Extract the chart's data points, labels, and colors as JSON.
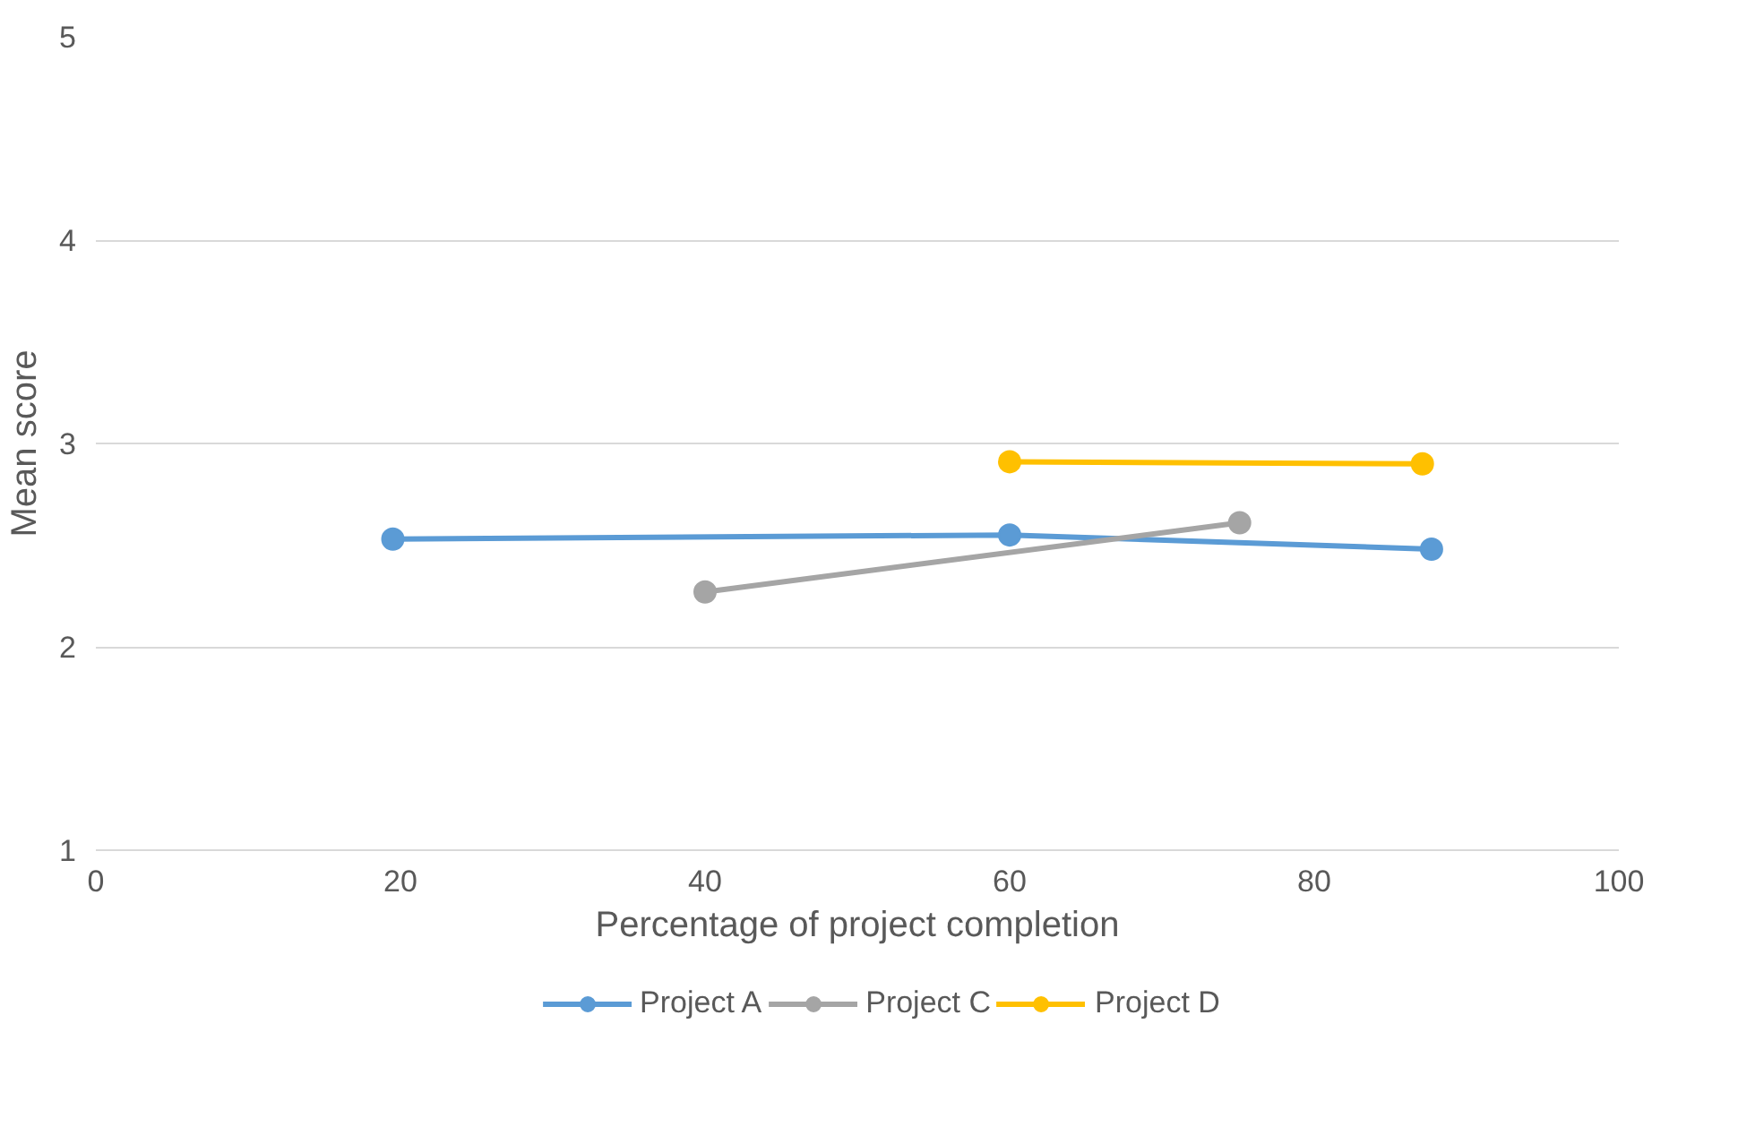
{
  "chart_data": {
    "type": "line",
    "xlabel": "Percentage of project completion",
    "ylabel": "Mean score",
    "xlim": [
      0,
      100
    ],
    "xticks": [
      0,
      20,
      40,
      60,
      80,
      100
    ],
    "ylim": [
      1,
      5
    ],
    "yticks": [
      1,
      2,
      3,
      4,
      5
    ],
    "grid": "y",
    "legend": "bottom",
    "marker": "circle",
    "line_style": "solid",
    "series": [
      {
        "name": "Project A",
        "color": "#5b9bd5",
        "x": [
          19.5,
          60,
          87.7
        ],
        "values": [
          2.53,
          2.55,
          2.48
        ]
      },
      {
        "name": "Project C",
        "color": "#a5a5a5",
        "x": [
          40,
          75.1
        ],
        "values": [
          2.27,
          2.61
        ]
      },
      {
        "name": "Project D",
        "color": "#ffc000",
        "x": [
          60,
          87.1
        ],
        "values": [
          2.91,
          2.9
        ]
      }
    ]
  }
}
